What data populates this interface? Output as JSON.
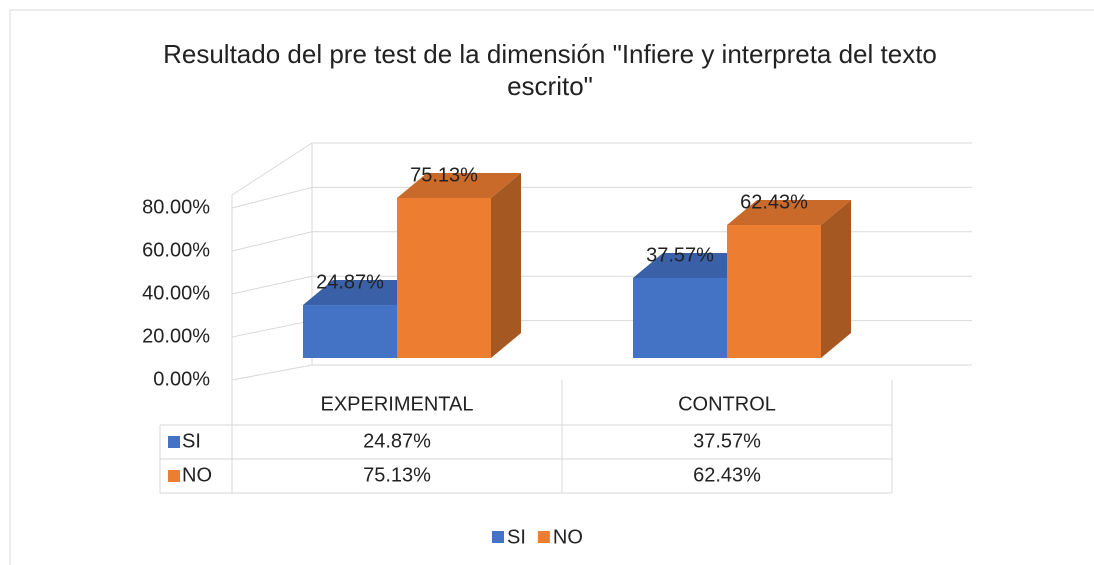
{
  "chart_data": {
    "type": "bar3d",
    "title": "Resultado del pre test de la dimensión \"Infiere y interpreta del texto escrito\"",
    "categories": [
      "EXPERIMENTAL",
      "CONTROL"
    ],
    "series": [
      {
        "name": "SI",
        "color": "#4472c4",
        "values": [
          24.87,
          37.57
        ],
        "value_labels": [
          "24.87%",
          "37.57%"
        ]
      },
      {
        "name": "NO",
        "color": "#ed7d31",
        "values": [
          75.13,
          62.43
        ],
        "value_labels": [
          "75.13%",
          "62.43%"
        ]
      }
    ],
    "ylim": [
      0,
      100
    ],
    "yticks": [
      {
        "value": 0,
        "label": "0.00%"
      },
      {
        "value": 20,
        "label": "20.00%"
      },
      {
        "value": 40,
        "label": "40.00%"
      },
      {
        "value": 60,
        "label": "60.00%"
      },
      {
        "value": 80,
        "label": "80.00%"
      }
    ],
    "grid": true,
    "data_table": true,
    "legend": "bottom"
  }
}
